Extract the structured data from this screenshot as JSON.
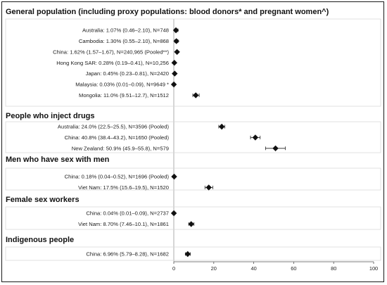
{
  "chart_data": {
    "type": "forest",
    "title": "",
    "xlabel": "",
    "ylabel": "",
    "xlim": [
      0,
      100
    ],
    "xticks": [
      0,
      20,
      40,
      60,
      80,
      100
    ],
    "marker": "diamond",
    "groups": [
      {
        "title": "General population (including proxy populations: blood donors* and pregnant women^)",
        "rows": [
          {
            "label": "Australia: 1.07% (0.46–2.10), N=748",
            "value": 1.07,
            "low": 0.46,
            "high": 2.1
          },
          {
            "label": "Cambodia: 1.30% (0.55–2.10), N=868",
            "value": 1.3,
            "low": 0.55,
            "high": 2.1
          },
          {
            "label": "China: 1.62% (1.57–1.67), N=240,965 (Pooled**)",
            "value": 1.62,
            "low": 1.57,
            "high": 1.67
          },
          {
            "label": "Hong Kong SAR: 0.28% (0.19–0.41), N=10,256",
            "value": 0.28,
            "low": 0.19,
            "high": 0.41
          },
          {
            "label": "Japan: 0.45% (0.23–0.81), N=2420",
            "value": 0.45,
            "low": 0.23,
            "high": 0.81
          },
          {
            "label": "Malaysia: 0.03% (0.01–0.09), N=9649 *",
            "value": 0.03,
            "low": 0.01,
            "high": 0.09
          },
          {
            "label": "Mongolia: 11.0% (9.51–12.7), N=1512",
            "value": 11.0,
            "low": 9.51,
            "high": 12.7
          }
        ]
      },
      {
        "title": "People who inject drugs",
        "rows": [
          {
            "label": "Australia: 24.0% (22.5–25.5), N=3596 (Pooled)",
            "value": 24.0,
            "low": 22.5,
            "high": 25.5
          },
          {
            "label": "China: 40.8% (38.4–43.2), N=1650 (Pooled)",
            "value": 40.8,
            "low": 38.4,
            "high": 43.2
          },
          {
            "label": "New Zealand: 50.9% (45.9–55.8), N=579",
            "value": 50.9,
            "low": 45.9,
            "high": 55.8
          }
        ]
      },
      {
        "title": "Men who have sex with men",
        "rows": [
          {
            "label": "China: 0.18% (0.04–0.52), N=1696 (Pooled)",
            "value": 0.18,
            "low": 0.04,
            "high": 0.52
          },
          {
            "label": "Viet Nam: 17.5% (15.6–19.5), N=1520",
            "value": 17.5,
            "low": 15.6,
            "high": 19.5
          }
        ]
      },
      {
        "title": "Female sex workers",
        "rows": [
          {
            "label": "China: 0.04% (0.01–0.09), N=2737",
            "value": 0.04,
            "low": 0.01,
            "high": 0.09
          },
          {
            "label": "Viet Nam: 8.70% (7.46–10.1), N=1861",
            "value": 8.7,
            "low": 7.46,
            "high": 10.1
          }
        ]
      },
      {
        "title": "Indigenous people",
        "rows": [
          {
            "label": "China: 6.96% (5.79–8.28), N=1682",
            "value": 6.96,
            "low": 5.79,
            "high": 8.28
          }
        ]
      }
    ]
  }
}
